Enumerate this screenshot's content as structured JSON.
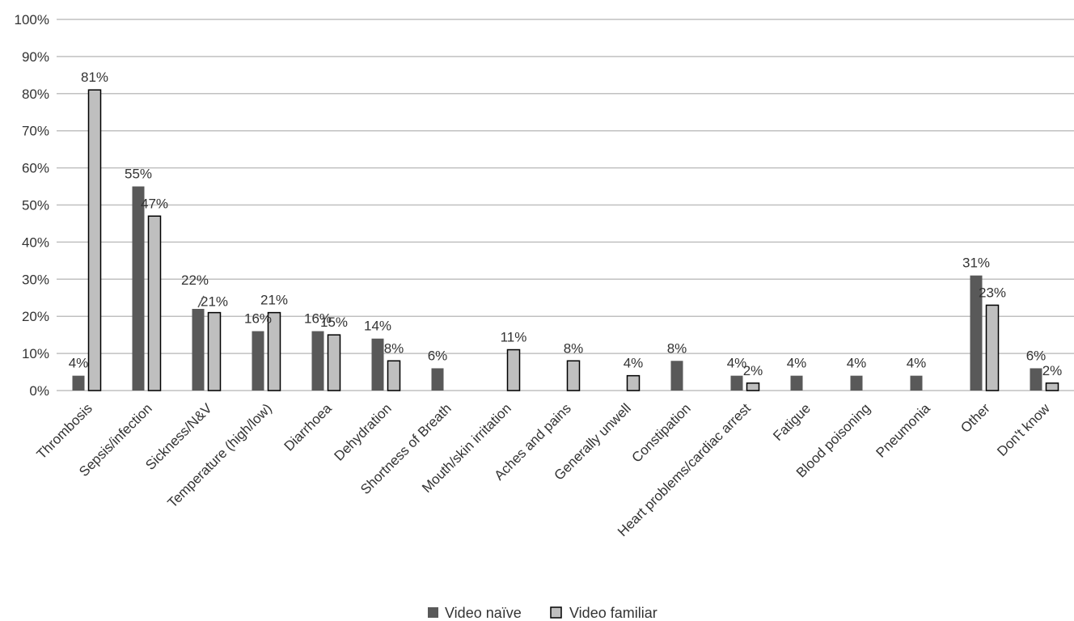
{
  "chart_data": {
    "type": "bar",
    "categories": [
      "Thrombosis",
      "Sepsis/infection",
      "Sickness/N&V",
      "Temperature (high/low)",
      "Diarrhoea",
      "Dehydration",
      "Shortness of Breath",
      "Mouth/skin irritation",
      "Aches and pains",
      "Generally unwell",
      "Constipation",
      "Heart problems/cardiac arrest",
      "Fatigue",
      "Blood poisoning",
      "Pneumonia",
      "Other",
      "Don't know"
    ],
    "series": [
      {
        "name": "Video naïve",
        "color": "#595959",
        "values": [
          4,
          55,
          22,
          16,
          16,
          14,
          6,
          0,
          0,
          0,
          8,
          4,
          4,
          4,
          4,
          31,
          6
        ],
        "labels": [
          "4%",
          "55%",
          "22%",
          "16%",
          "16%",
          "14%",
          "6%",
          "",
          "",
          "",
          "8%",
          "4%",
          "4%",
          "4%",
          "4%",
          "31%",
          "6%"
        ]
      },
      {
        "name": "Video familiar",
        "color": "#bfbfbf",
        "values": [
          81,
          47,
          21,
          21,
          15,
          8,
          0,
          11,
          8,
          4,
          0,
          2,
          0,
          0,
          0,
          23,
          2
        ],
        "labels": [
          "81%",
          "47%",
          "21%",
          "21%",
          "15%",
          "8%",
          "",
          "11%",
          "8%",
          "4%",
          "",
          "2%",
          "",
          "",
          "",
          "23%",
          "2%"
        ]
      }
    ],
    "y_ticks": [
      "0%",
      "10%",
      "20%",
      "30%",
      "40%",
      "50%",
      "60%",
      "70%",
      "80%",
      "90%",
      "100%"
    ],
    "ylim": [
      0,
      100
    ],
    "grid": true,
    "legend_position": "bottom-center",
    "title": "",
    "xlabel": "",
    "ylabel": ""
  }
}
